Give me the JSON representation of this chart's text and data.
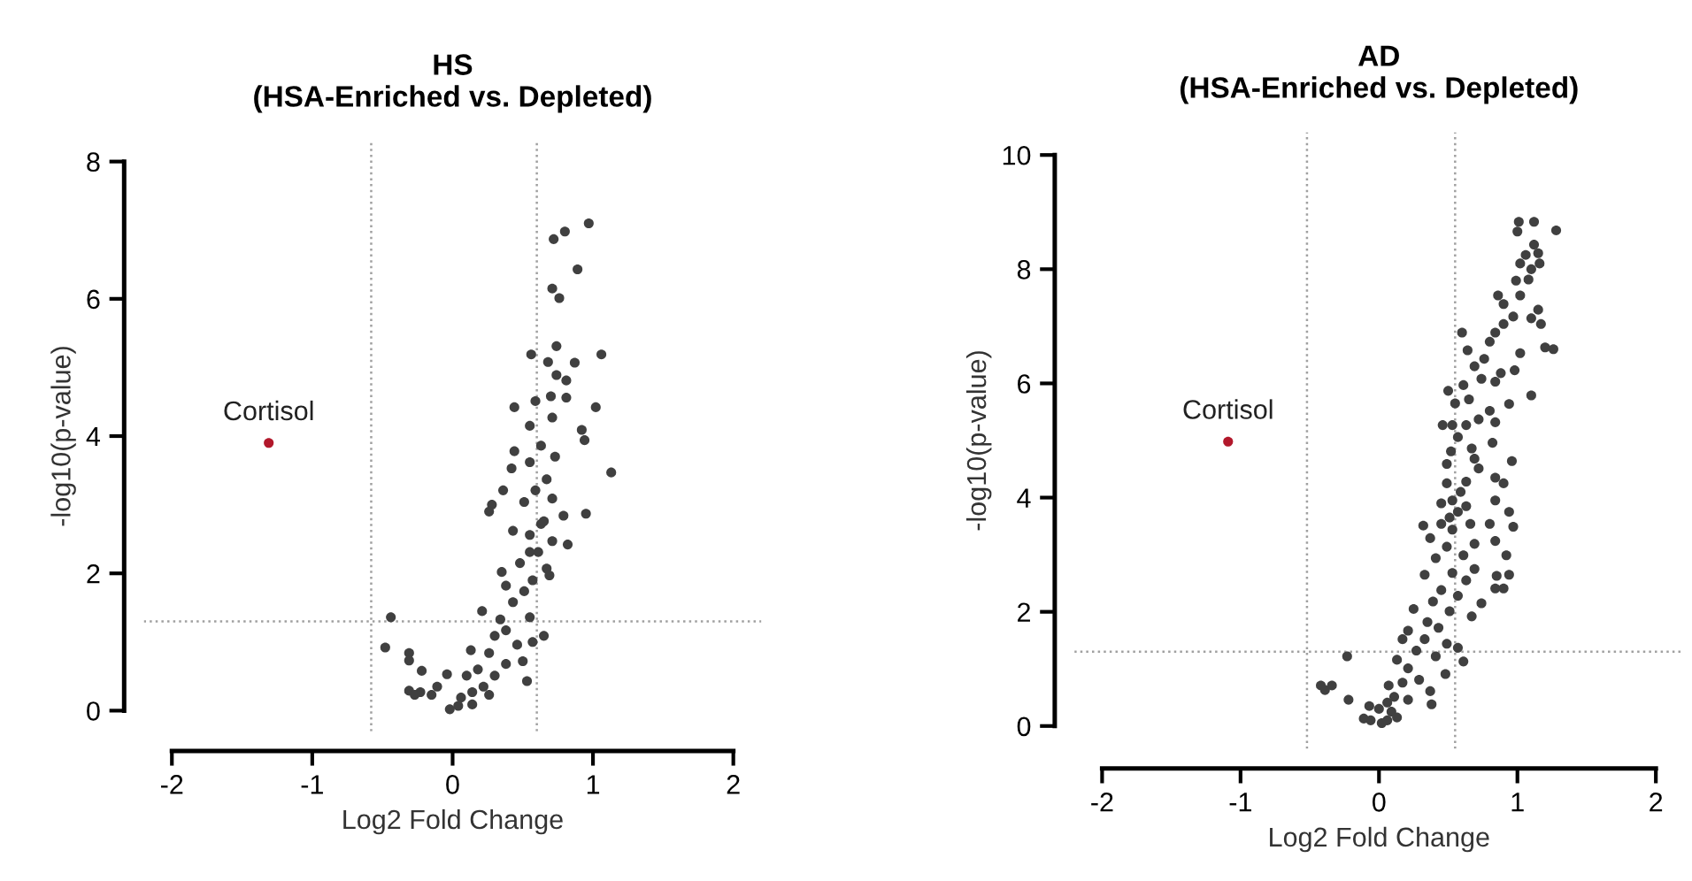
{
  "chart_data": [
    {
      "type": "scatter",
      "title": "HS\n(HSA-Enriched vs. Depleted)",
      "xlabel": "Log2 Fold Change",
      "ylabel": "-log10(p-value)",
      "xlim": [
        -2.2,
        2.2
      ],
      "ylim": [
        -0.3,
        8.3
      ],
      "xticks": [
        -2,
        -1,
        0,
        1,
        2
      ],
      "yticks": [
        0,
        2,
        4,
        6,
        8
      ],
      "marker": "circle",
      "series": [
        {
          "color": "#404040",
          "x": [
            0.97,
            0.8,
            0.72,
            0.89,
            0.71,
            0.76,
            0.74,
            1.06,
            0.56,
            0.68,
            0.87,
            0.74,
            0.81,
            1.02,
            1.13,
            0.95,
            0.92,
            0.94,
            0.44,
            0.59,
            0.7,
            0.81,
            0.55,
            0.71,
            0.44,
            0.63,
            0.73,
            0.55,
            0.42,
            0.67,
            0.59,
            0.36,
            0.28,
            0.26,
            0.51,
            0.71,
            0.79,
            0.63,
            0.55,
            0.71,
            0.82,
            0.43,
            0.55,
            0.48,
            0.67,
            0.69,
            0.35,
            0.57,
            0.51,
            0.38,
            0.43,
            0.21,
            0.55,
            0.34,
            0.38,
            0.3,
            0.65,
            0.57,
            0.46,
            0.26,
            0.13,
            0.5,
            0.38,
            0.18,
            0.3,
            0.53,
            0.1,
            0.22,
            0.14,
            0.06,
            -0.02,
            0.04,
            0.14,
            0.26,
            -0.04,
            -0.11,
            -0.15,
            -0.23,
            -0.31,
            -0.27,
            -0.22,
            -0.31,
            -0.31,
            -0.48,
            -0.44,
            0.65,
            0.61
          ],
          "values": [
            7.1,
            6.98,
            6.87,
            6.43,
            6.15,
            6.01,
            5.31,
            5.19,
            5.19,
            5.08,
            5.07,
            4.89,
            4.81,
            4.42,
            3.47,
            2.87,
            4.09,
            3.94,
            4.42,
            4.51,
            4.58,
            4.56,
            4.15,
            4.27,
            3.78,
            3.86,
            3.7,
            3.62,
            3.53,
            3.37,
            3.21,
            3.21,
            3.0,
            2.9,
            3.04,
            3.09,
            2.84,
            2.72,
            2.56,
            2.47,
            2.42,
            2.62,
            2.31,
            2.15,
            2.07,
            1.97,
            2.02,
            1.9,
            1.74,
            1.82,
            1.58,
            1.45,
            1.36,
            1.33,
            1.17,
            1.09,
            1.09,
            1.0,
            0.96,
            0.84,
            0.88,
            0.72,
            0.68,
            0.6,
            0.51,
            0.43,
            0.51,
            0.35,
            0.27,
            0.19,
            0.02,
            0.07,
            0.09,
            0.23,
            0.53,
            0.35,
            0.23,
            0.27,
            0.29,
            0.23,
            0.58,
            0.84,
            0.73,
            0.92,
            1.36,
            2.76,
            2.31
          ]
        },
        {
          "color": "#b2182b",
          "x": [
            -1.31
          ],
          "values": [
            3.9
          ]
        }
      ],
      "annotations": [
        {
          "text": "Cortisol",
          "x": -1.31,
          "y": 3.9
        }
      ],
      "ref_lines": [
        {
          "axis": "x",
          "value": -0.58,
          "color": "#a0a0a0",
          "line_style": "dotted"
        },
        {
          "axis": "x",
          "value": 0.6,
          "color": "#a0a0a0",
          "line_style": "dotted"
        },
        {
          "axis": "y",
          "value": 1.3,
          "color": "#a0a0a0",
          "line_style": "dotted"
        }
      ]
    },
    {
      "type": "scatter",
      "title": "AD\n(HSA-Enriched vs. Depleted)",
      "xlabel": "Log2 Fold Change",
      "ylabel": "-log10(p-value)",
      "xlim": [
        -2.2,
        2.2
      ],
      "ylim": [
        -0.4,
        10.4
      ],
      "xticks": [
        -2,
        -1,
        0,
        1,
        2
      ],
      "yticks": [
        0,
        2,
        4,
        6,
        8,
        10
      ],
      "marker": "circle",
      "series": [
        {
          "color": "#404040",
          "x": [
            1.0,
            1.01,
            1.12,
            1.28,
            1.12,
            1.06,
            1.15,
            1.02,
            1.1,
            1.16,
            1.08,
            0.99,
            0.86,
            1.02,
            0.9,
            1.15,
            0.97,
            1.1,
            1.17,
            0.9,
            0.84,
            0.6,
            0.8,
            1.2,
            1.26,
            1.02,
            0.64,
            0.76,
            0.69,
            0.88,
            0.74,
            0.98,
            0.5,
            0.61,
            0.84,
            1.1,
            0.65,
            0.94,
            0.55,
            0.8,
            0.72,
            0.46,
            0.53,
            0.84,
            0.63,
            0.57,
            0.82,
            0.67,
            0.52,
            0.69,
            0.96,
            0.72,
            0.49,
            0.84,
            0.63,
            0.9,
            0.49,
            0.59,
            0.53,
            0.84,
            0.45,
            0.63,
            0.94,
            0.57,
            0.51,
            0.45,
            0.66,
            0.32,
            0.8,
            0.97,
            0.53,
            0.37,
            0.69,
            0.49,
            0.84,
            0.61,
            0.92,
            0.41,
            0.69,
            0.53,
            0.33,
            0.85,
            0.94,
            0.63,
            0.84,
            0.9,
            0.45,
            0.74,
            0.57,
            0.39,
            0.25,
            0.51,
            0.67,
            0.35,
            0.43,
            0.21,
            0.17,
            0.33,
            0.49,
            0.57,
            0.27,
            0.41,
            0.61,
            0.13,
            0.21,
            0.48,
            0.29,
            0.17,
            0.07,
            0.37,
            0.38,
            0.11,
            0.21,
            0.06,
            0.0,
            0.09,
            0.13,
            0.02,
            -0.06,
            -0.11,
            -0.07,
            0.06,
            -0.22,
            -0.23,
            -0.42,
            -0.34,
            -0.39
          ],
          "values": [
            8.66,
            8.83,
            8.83,
            8.68,
            8.43,
            8.25,
            8.28,
            8.1,
            8.0,
            8.1,
            7.82,
            7.8,
            7.54,
            7.54,
            7.39,
            7.29,
            7.17,
            7.14,
            7.04,
            7.04,
            6.89,
            6.89,
            6.73,
            6.63,
            6.6,
            6.53,
            6.58,
            6.43,
            6.3,
            6.18,
            6.08,
            6.23,
            5.87,
            5.97,
            6.03,
            5.79,
            5.72,
            5.64,
            5.65,
            5.52,
            5.37,
            5.27,
            5.27,
            5.32,
            5.27,
            5.06,
            4.96,
            4.86,
            4.81,
            4.68,
            4.64,
            4.51,
            4.59,
            4.35,
            4.28,
            4.25,
            4.25,
            4.1,
            3.95,
            3.95,
            3.9,
            3.85,
            3.75,
            3.75,
            3.65,
            3.54,
            3.54,
            3.51,
            3.54,
            3.49,
            3.44,
            3.29,
            3.19,
            3.14,
            3.24,
            2.99,
            2.99,
            2.94,
            2.75,
            2.68,
            2.65,
            2.63,
            2.65,
            2.55,
            2.41,
            2.41,
            2.38,
            2.15,
            2.28,
            2.18,
            2.05,
            2.01,
            1.92,
            1.82,
            1.72,
            1.67,
            1.52,
            1.52,
            1.44,
            1.37,
            1.32,
            1.22,
            1.13,
            1.16,
            1.01,
            0.91,
            0.81,
            0.76,
            0.71,
            0.61,
            0.38,
            0.51,
            0.46,
            0.41,
            0.3,
            0.25,
            0.15,
            0.05,
            0.1,
            0.13,
            0.35,
            0.1,
            0.46,
            1.22,
            0.71,
            0.71,
            0.63
          ]
        },
        {
          "color": "#b2182b",
          "x": [
            -1.09
          ],
          "values": [
            4.98
          ]
        }
      ],
      "annotations": [
        {
          "text": "Cortisol",
          "x": -1.09,
          "y": 4.98
        }
      ],
      "ref_lines": [
        {
          "axis": "x",
          "value": -0.52,
          "color": "#a0a0a0",
          "line_style": "dotted"
        },
        {
          "axis": "x",
          "value": 0.55,
          "color": "#a0a0a0",
          "line_style": "dotted"
        },
        {
          "axis": "y",
          "value": 1.3,
          "color": "#a0a0a0",
          "line_style": "dotted"
        }
      ]
    }
  ]
}
